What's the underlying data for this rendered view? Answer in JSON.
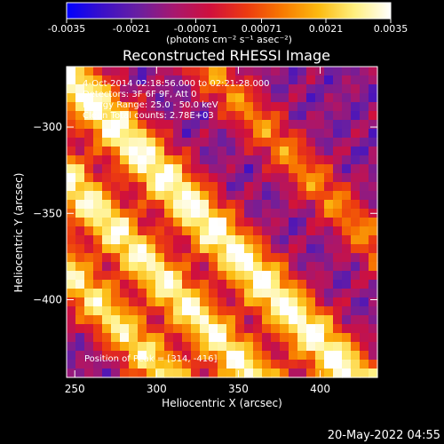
{
  "colorbar": {
    "ticks": [
      "-0.0035",
      "-0.0021",
      "-0.00071",
      "0.00071",
      "0.0021",
      "0.0035"
    ],
    "tick_values": [
      -0.0035,
      -0.0021,
      -0.00071,
      0.00071,
      0.0021,
      0.0035
    ],
    "range": [
      -0.0035,
      0.0035
    ],
    "colormap": [
      "#0000ff",
      "#3b10c8",
      "#6a1fa0",
      "#a8176e",
      "#d0103c",
      "#ec3a10",
      "#f87a00",
      "#fcba10",
      "#fff080",
      "#ffffff"
    ]
  },
  "chart_data": {
    "type": "heatmap",
    "title": "Reconstructed RHESSI Image",
    "xlabel": "Heliocentric X (arcsec)",
    "ylabel": "Heliocentric Y (arcsec)",
    "xlim": [
      245,
      435
    ],
    "ylim": [
      -445,
      -265
    ],
    "x_ticks": [
      250,
      300,
      350,
      400
    ],
    "y_ticks": [
      -400,
      -350,
      -300
    ],
    "x_tick_labels": [
      "250",
      "300",
      "350",
      "400"
    ],
    "y_tick_labels": [
      "−400",
      "−350",
      "−300"
    ],
    "units_label": "(photons cm⁻² s⁻¹ asec⁻²)",
    "info_lines": [
      "4-Oct-2014 02:18:56.000 to 02:21:28.000",
      "Detectors: 3F 6F 9F, Att 0",
      "Energy Range: 25.0 - 50.0 keV",
      "Clean    Total counts: 2.78E+03"
    ],
    "peak_text": "Position of Peak = [314, -416]",
    "peak": [
      314,
      -416
    ],
    "ridges": [
      {
        "offset": -88,
        "amp": 0.85,
        "width": 20
      },
      {
        "offset": -35,
        "amp": 0.95,
        "width": 20
      },
      {
        "offset": 25,
        "amp": 1.0,
        "width": 22
      },
      {
        "offset": 115,
        "amp": 0.55,
        "width": 18
      }
    ]
  },
  "footer": {
    "timestamp": "20-May-2022 04:55"
  }
}
